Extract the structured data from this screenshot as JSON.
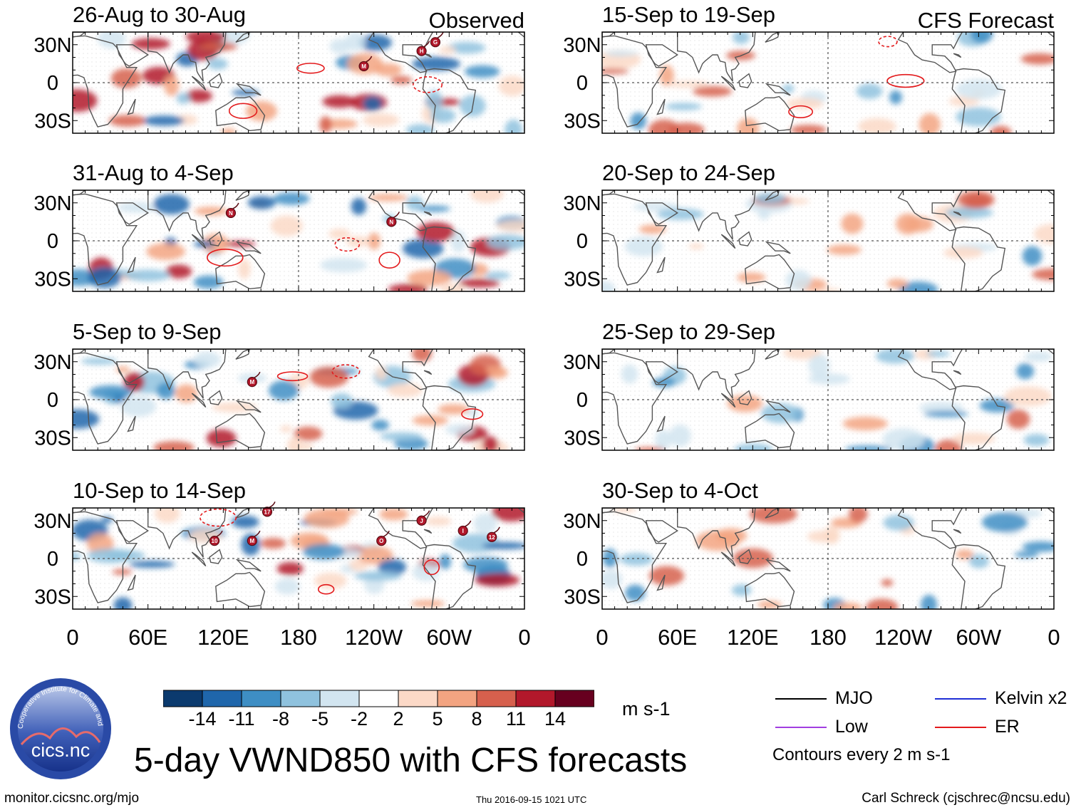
{
  "title": "5-day VWND850 with CFS forecasts",
  "footer": {
    "left": "monitor.cicsnc.org/mjo",
    "timestamp": "Thu 2016-09-15 1021 UTC",
    "right": "Carl Schreck (cjschrec@ncsu.edu)"
  },
  "logo": {
    "ring_text": "Cooperative Institute for Climate and Satellites",
    "name": "cics.nc"
  },
  "labels": {
    "observed": "Observed",
    "forecast": "CFS Forecast"
  },
  "axes": {
    "lat_ticks": [
      "30N",
      "0",
      "30S"
    ],
    "lon_ticks": [
      "0",
      "60E",
      "120E",
      "180",
      "120W",
      "60W",
      "0"
    ]
  },
  "colorbar": {
    "labels": [
      "-14",
      "-11",
      "-8",
      "-5",
      "-2",
      "2",
      "5",
      "8",
      "11",
      "14"
    ],
    "colors": [
      "#0b3a6e",
      "#1f66ab",
      "#3e8ec4",
      "#8fc2de",
      "#d2e5f0",
      "#ffffff",
      "#fcd9c7",
      "#f3a481",
      "#d6604d",
      "#b2182b",
      "#67001f"
    ],
    "units": "m s-1"
  },
  "legend": {
    "items": [
      {
        "label": "MJO",
        "color": "#000000"
      },
      {
        "label": "Kelvin x2",
        "color": "#1f2fd6"
      },
      {
        "label": "Low",
        "color": "#a13ee0"
      },
      {
        "label": "ER",
        "color": "#e31a1c"
      }
    ],
    "contour_note": "Contours every 2 m s-1"
  },
  "chart_data": [
    {
      "type": "heatmap",
      "title": "26-Aug to 30-Aug",
      "corner_label": "Observed",
      "storms": [
        {
          "letter": "M",
          "lon": 232,
          "lat": 13
        },
        {
          "letter": "H",
          "lon": 278,
          "lat": 25
        },
        {
          "letter": "G",
          "lon": 289,
          "lat": 32
        }
      ],
      "xlim": [
        0,
        360
      ],
      "ylim": [
        -40,
        40
      ]
    },
    {
      "type": "heatmap",
      "title": "31-Aug to 4-Sep",
      "corner_label": "",
      "storms": [
        {
          "letter": "N",
          "lon": 126,
          "lat": 22
        },
        {
          "letter": "N",
          "lon": 254,
          "lat": 15
        }
      ],
      "xlim": [
        0,
        360
      ],
      "ylim": [
        -40,
        40
      ]
    },
    {
      "type": "heatmap",
      "title": "5-Sep to 9-Sep",
      "corner_label": "",
      "storms": [
        {
          "letter": "M",
          "lon": 143,
          "lat": 14
        }
      ],
      "xlim": [
        0,
        360
      ],
      "ylim": [
        -40,
        40
      ]
    },
    {
      "type": "heatmap",
      "title": "10-Sep to 14-Sep",
      "corner_label": "",
      "storms": [
        {
          "letter": "17",
          "lon": 155,
          "lat": 37
        },
        {
          "letter": "10",
          "lon": 113,
          "lat": 14
        },
        {
          "letter": "M",
          "lon": 143,
          "lat": 14
        },
        {
          "letter": "O",
          "lon": 246,
          "lat": 14
        },
        {
          "letter": "J",
          "lon": 278,
          "lat": 30
        },
        {
          "letter": "I",
          "lon": 311,
          "lat": 22
        },
        {
          "letter": "12",
          "lon": 334,
          "lat": 17
        }
      ],
      "xlim": [
        0,
        360
      ],
      "ylim": [
        -40,
        40
      ]
    },
    {
      "type": "heatmap",
      "title": "15-Sep to 19-Sep",
      "corner_label": "CFS Forecast",
      "storms": [],
      "xlim": [
        0,
        360
      ],
      "ylim": [
        -40,
        40
      ]
    },
    {
      "type": "heatmap",
      "title": "20-Sep to 24-Sep",
      "corner_label": "",
      "storms": [],
      "xlim": [
        0,
        360
      ],
      "ylim": [
        -40,
        40
      ]
    },
    {
      "type": "heatmap",
      "title": "25-Sep to 29-Sep",
      "corner_label": "",
      "storms": [],
      "xlim": [
        0,
        360
      ],
      "ylim": [
        -40,
        40
      ]
    },
    {
      "type": "heatmap",
      "title": "30-Sep to 4-Oct",
      "corner_label": "",
      "storms": [],
      "xlim": [
        0,
        360
      ],
      "ylim": [
        -40,
        40
      ]
    }
  ]
}
